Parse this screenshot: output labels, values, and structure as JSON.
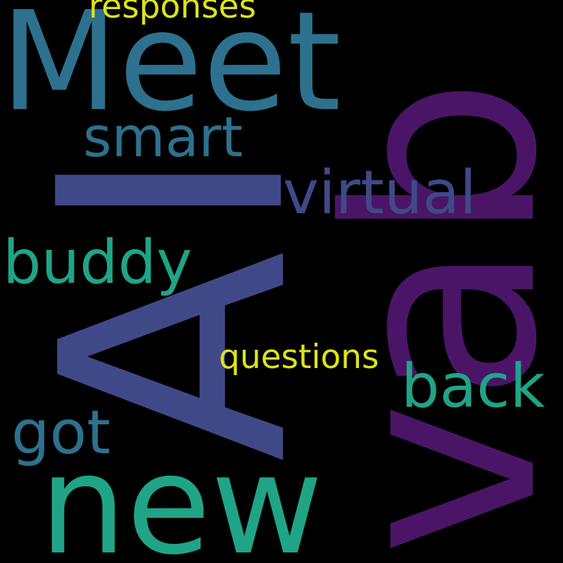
{
  "background_color": "#000000",
  "words": [
    {
      "id": "vab",
      "text": "vab",
      "color": "#4B1567",
      "orientation": "vertical"
    },
    {
      "id": "ai-a",
      "text": "A",
      "color": "#404988",
      "orientation": "vertical"
    },
    {
      "id": "ai-i",
      "text": "I",
      "color": "#404988",
      "orientation": "vertical"
    },
    {
      "id": "meet",
      "text": "Meet",
      "color": "#2D718E",
      "orientation": "horizontal"
    },
    {
      "id": "new",
      "text": "new",
      "color": "#20A486",
      "orientation": "horizontal"
    },
    {
      "id": "virtual",
      "text": "virtual",
      "color": "#404988",
      "orientation": "horizontal"
    },
    {
      "id": "buddy",
      "text": "buddy",
      "color": "#20A486",
      "orientation": "horizontal"
    },
    {
      "id": "back",
      "text": "back",
      "color": "#20A486",
      "orientation": "horizontal"
    },
    {
      "id": "smart",
      "text": "smart",
      "color": "#2D718E",
      "orientation": "horizontal"
    },
    {
      "id": "got",
      "text": "got",
      "color": "#2D718E",
      "orientation": "horizontal"
    },
    {
      "id": "questions",
      "text": "questions",
      "color": "#DDE318",
      "orientation": "horizontal"
    },
    {
      "id": "responses",
      "text": "responses",
      "color": "#DDE318",
      "orientation": "horizontal"
    }
  ]
}
